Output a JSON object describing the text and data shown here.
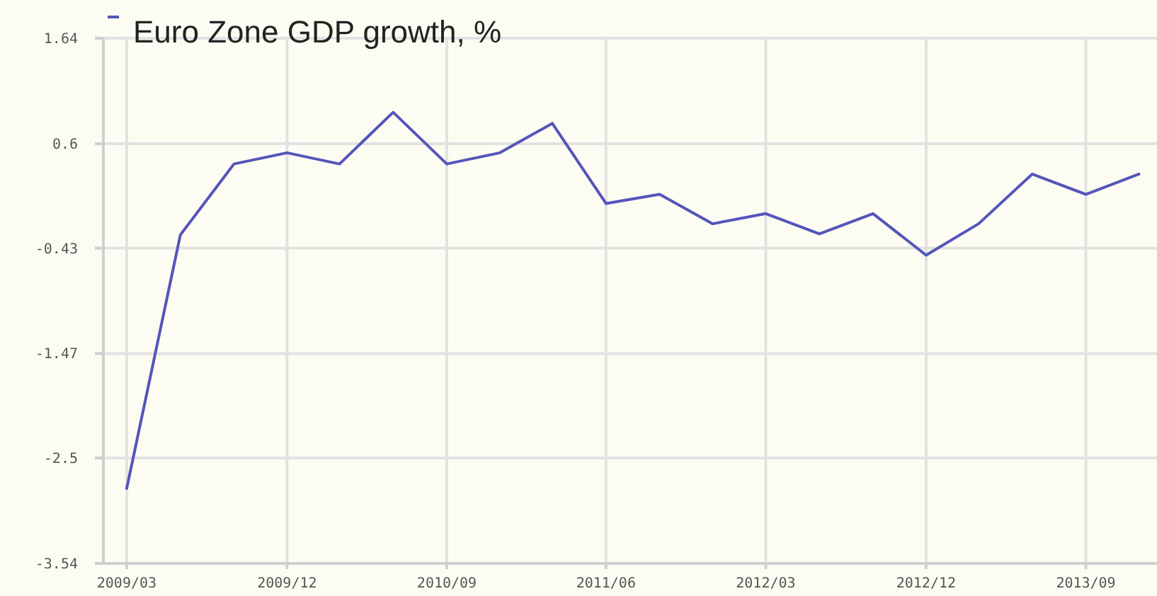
{
  "chart_data": {
    "type": "line",
    "x": [
      "2009-03",
      "2009-06",
      "2009-09",
      "2009-12",
      "2010-03",
      "2010-06",
      "2010-09",
      "2010-12",
      "2011-03",
      "2011-06",
      "2011-09",
      "2011-12",
      "2012-03",
      "2012-06",
      "2012-09",
      "2012-12",
      "2013-03",
      "2013-06",
      "2013-09",
      "2013-12"
    ],
    "series": [
      {
        "name": "Euro Zone GDP growth, %",
        "color": "#5555bb",
        "values": [
          -2.8,
          -0.3,
          0.4,
          0.51,
          0.4,
          0.91,
          0.4,
          0.51,
          0.8,
          0.01,
          0.1,
          -0.19,
          -0.09,
          -0.29,
          -0.09,
          -0.5,
          -0.19,
          0.3,
          0.1,
          0.3
        ]
      }
    ],
    "xlim": [
      "2009-01-20",
      "2014-01-01"
    ],
    "xticks": [
      {
        "value": "2009-03",
        "label": "2009/03"
      },
      {
        "value": "2009-12",
        "label": "2009/12"
      },
      {
        "value": "2010-09",
        "label": "2010/09"
      },
      {
        "value": "2011-06",
        "label": "2011/06"
      },
      {
        "value": "2012-03",
        "label": "2012/03"
      },
      {
        "value": "2012-12",
        "label": "2012/12"
      },
      {
        "value": "2013-09",
        "label": "2013/09"
      }
    ],
    "ylim": [
      -3.54,
      1.64
    ],
    "yticks": [
      -3.54,
      -2.5,
      -1.47,
      -0.43,
      0.6,
      1.64
    ],
    "grid": true,
    "legend": "top left",
    "marker": "none",
    "line_style": "solid"
  }
}
